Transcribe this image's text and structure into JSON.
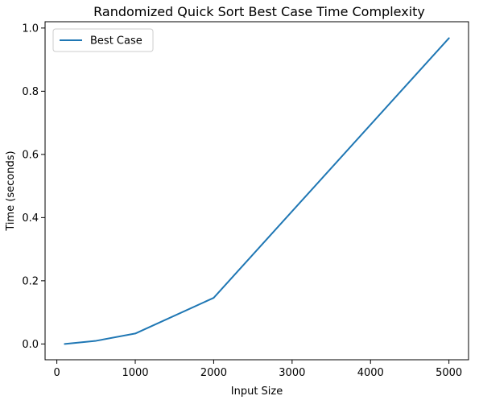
{
  "chart_data": {
    "type": "line",
    "title": "Randomized Quick Sort Best Case Time Complexity",
    "xlabel": "Input Size",
    "ylabel": "Time (seconds)",
    "xlim": [
      -150,
      5250
    ],
    "ylim": [
      -0.05,
      1.02
    ],
    "xticks": [
      0,
      1000,
      2000,
      3000,
      4000,
      5000
    ],
    "yticks": [
      0.0,
      0.2,
      0.4,
      0.6,
      0.8,
      1.0
    ],
    "xtick_labels": [
      "0",
      "1000",
      "2000",
      "3000",
      "4000",
      "5000"
    ],
    "ytick_labels": [
      "0.0",
      "0.2",
      "0.4",
      "0.6",
      "0.8",
      "1.0"
    ],
    "legend_position": "top-left",
    "grid": false,
    "series": [
      {
        "name": "Best Case",
        "color": "#1f77b4",
        "x": [
          100,
          500,
          1000,
          2000,
          5000
        ],
        "y": [
          0.0,
          0.01,
          0.033,
          0.146,
          0.968
        ]
      }
    ]
  }
}
